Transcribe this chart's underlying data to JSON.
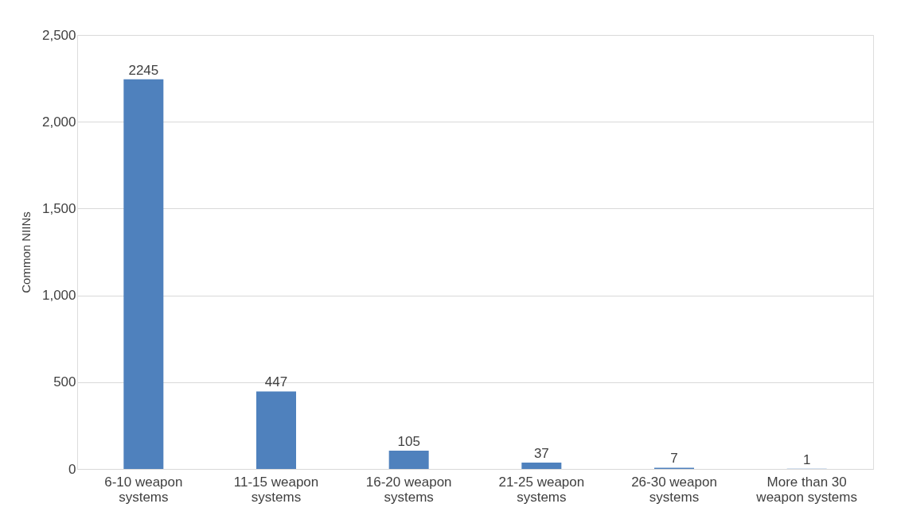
{
  "chart_data": {
    "type": "bar",
    "ylabel": "Common NIINs",
    "categories": [
      "6-10 weapon systems",
      "11-15 weapon systems",
      "16-20 weapon systems",
      "21-25 weapon systems",
      "26-30 weapon systems",
      "More than 30 weapon systems"
    ],
    "values": [
      2245,
      447,
      105,
      37,
      7,
      1
    ],
    "color": "#4f81bd",
    "ylim": [
      0,
      2500
    ],
    "yticks": [
      {
        "value": 0,
        "label": "0"
      },
      {
        "value": 500,
        "label": "500"
      },
      {
        "value": 1000,
        "label": "1,000"
      },
      {
        "value": 1500,
        "label": "1,500"
      },
      {
        "value": 2000,
        "label": "2,000"
      },
      {
        "value": 2500,
        "label": "2,500"
      }
    ],
    "grid": "y",
    "data_labels": true
  }
}
